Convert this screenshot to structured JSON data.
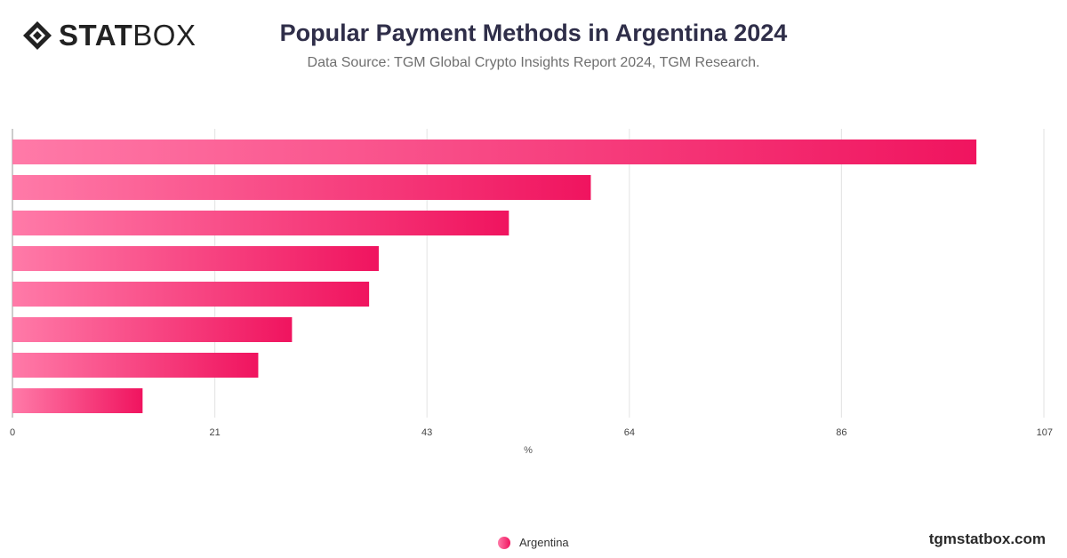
{
  "header": {
    "logo_bold": "STAT",
    "logo_light": "BOX",
    "title": "Popular Payment Methods in Argentina 2024",
    "subtitle": "Data Source: TGM Global Crypto Insights Report 2024, TGM Research."
  },
  "footer": {
    "legend_label": "Argentina",
    "site": "tgmstatbox.com"
  },
  "colors": {
    "bar_start": "#ff7aa8",
    "bar_end": "#f0145f",
    "grid": "#e2e2e2",
    "title": "#2f2e49"
  },
  "chart_data": {
    "type": "bar",
    "orientation": "horizontal",
    "title": "Popular Payment Methods in Argentina 2024",
    "xlabel": "%",
    "ylabel": "",
    "categories": [
      "",
      "",
      "",
      "",
      "",
      "",
      "",
      ""
    ],
    "series": [
      {
        "name": "Argentina",
        "values": [
          100,
          60,
          51.5,
          38,
          37,
          29,
          25.5,
          13.5
        ]
      }
    ],
    "xlim": [
      0,
      107
    ],
    "xticks": [
      0,
      21,
      43,
      64,
      86,
      107
    ],
    "grid": true,
    "legend": "bottom-center"
  }
}
